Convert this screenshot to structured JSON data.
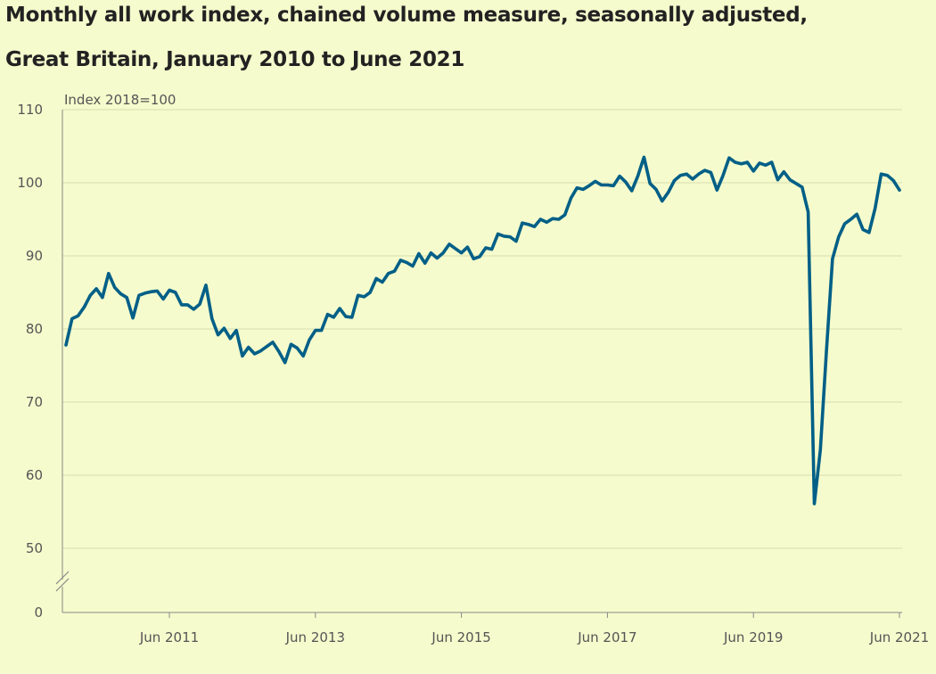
{
  "title_line1": "Monthly all work index, chained volume measure, seasonally adjusted,",
  "title_line2": "Great Britain, January 2010 to June 2021",
  "chart_data": {
    "type": "line",
    "title": "Monthly all work index, chained volume measure, seasonally adjusted, Great Britain, January 2010 to June 2021",
    "ylabel": "Index 2018=100",
    "xlabel": "",
    "ylim": [
      0,
      110
    ],
    "y_axis_break": "between 0 and 50",
    "y_ticks": [
      0,
      50,
      60,
      70,
      80,
      90,
      100,
      110
    ],
    "x_ticks": [
      "Jun 2011",
      "Jun 2013",
      "Jun 2015",
      "Jun 2017",
      "Jun 2019",
      "Jun 2021"
    ],
    "grid": "horizontal",
    "line_color": "#005f87",
    "x_start": "Jan 2010",
    "x_end": "Jun 2021",
    "values": [
      77.8,
      81.4,
      81.8,
      83.0,
      84.6,
      85.5,
      84.3,
      87.6,
      85.7,
      84.8,
      84.3,
      81.5,
      84.6,
      84.9,
      85.1,
      85.2,
      84.1,
      85.3,
      85.0,
      83.3,
      83.3,
      82.7,
      83.4,
      86.0,
      81.4,
      79.2,
      80.1,
      78.7,
      79.8,
      76.3,
      77.5,
      76.6,
      77.0,
      77.6,
      78.2,
      76.9,
      75.4,
      77.9,
      77.4,
      76.3,
      78.5,
      79.8,
      79.8,
      82.0,
      81.6,
      82.8,
      81.7,
      81.6,
      84.6,
      84.4,
      85.0,
      86.9,
      86.4,
      87.6,
      87.9,
      89.4,
      89.1,
      88.6,
      90.3,
      89.0,
      90.4,
      89.7,
      90.4,
      91.6,
      91.0,
      90.4,
      91.2,
      89.6,
      89.9,
      91.1,
      90.9,
      93.0,
      92.7,
      92.6,
      92.0,
      94.5,
      94.3,
      94.0,
      95.0,
      94.6,
      95.1,
      95.0,
      95.6,
      97.9,
      99.3,
      99.1,
      99.6,
      100.2,
      99.7,
      99.7,
      99.6,
      100.9,
      100.1,
      98.9,
      100.9,
      103.5,
      99.9,
      99.1,
      97.5,
      98.7,
      100.3,
      101.0,
      101.2,
      100.5,
      101.2,
      101.7,
      101.4,
      99.0,
      101.0,
      103.4,
      102.8,
      102.6,
      102.8,
      101.6,
      102.7,
      102.4,
      102.8,
      100.4,
      101.5,
      100.4,
      99.9,
      99.4,
      96.0,
      56.1,
      63.5,
      77.0,
      89.6,
      92.6,
      94.4,
      95.0,
      95.7,
      93.6,
      93.2,
      96.5,
      101.2,
      101.0,
      100.3,
      99.0
    ]
  }
}
